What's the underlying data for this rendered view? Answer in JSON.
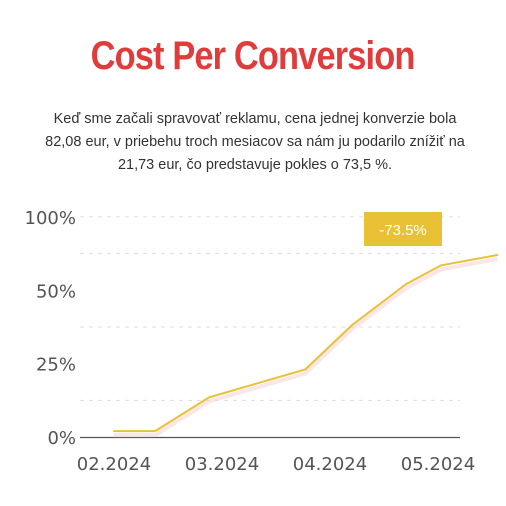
{
  "header": {
    "title": "Cost Per Conversion",
    "subtitle": "Keď sme začali spravovať reklamu, cena jednej konverzie bola 82,08 eur, v priebehu troch mesiacov sa nám ju podarilo znížiť na 21,73 eur, čo predstavuje pokles o 73,5 %."
  },
  "colors": {
    "title": "#e03c3c",
    "line": "#e8c234",
    "badge": "#e8c234",
    "grid": "#dddddd",
    "axis": "#555555",
    "tick_text": "#555555"
  },
  "chart_data": {
    "type": "line",
    "x_tick_labels": [
      "02.2024",
      "03.2024",
      "04.2024",
      "05.2024"
    ],
    "y_tick_labels": [
      "0%",
      "25%",
      "50%",
      "100%"
    ],
    "ylim": [
      0,
      75
    ],
    "grid": true,
    "series": [
      {
        "x": [
          0,
          0.38,
          0.88,
          1.3,
          1.77,
          2.2,
          2.7,
          3.03,
          3.55
        ],
        "values": [
          2,
          2,
          13.5,
          18,
          23,
          38,
          52,
          58.5,
          62
        ]
      }
    ],
    "annotation": {
      "text": "-73.5%"
    }
  }
}
